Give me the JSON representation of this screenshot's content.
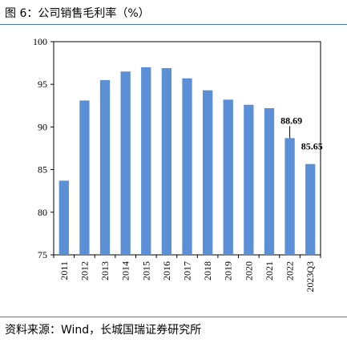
{
  "figure": {
    "title": "图 6：公司销售毛利率（%）",
    "source": "资料来源：Wind，长城国瑞证券研究所"
  },
  "colors": {
    "bar": "#5b8fd6",
    "rule": "#4a7db8",
    "axis": "#000000"
  },
  "chart_data": {
    "type": "bar",
    "title": "",
    "xlabel": "",
    "ylabel": "",
    "categories": [
      "2011",
      "2012",
      "2013",
      "2014",
      "2015",
      "2016",
      "2017",
      "2018",
      "2019",
      "2020",
      "2021",
      "2022",
      "2023Q3"
    ],
    "values": [
      83.7,
      93.1,
      95.5,
      96.5,
      97.0,
      96.9,
      95.7,
      94.3,
      93.2,
      92.6,
      92.2,
      88.69,
      85.65
    ],
    "data_labels": [
      null,
      null,
      null,
      null,
      null,
      null,
      null,
      null,
      null,
      null,
      null,
      "88.69",
      "85.65"
    ],
    "yticks": [
      75,
      80,
      85,
      90,
      95,
      100
    ],
    "ylim": [
      75,
      100
    ],
    "grid": false,
    "legend": "none"
  }
}
